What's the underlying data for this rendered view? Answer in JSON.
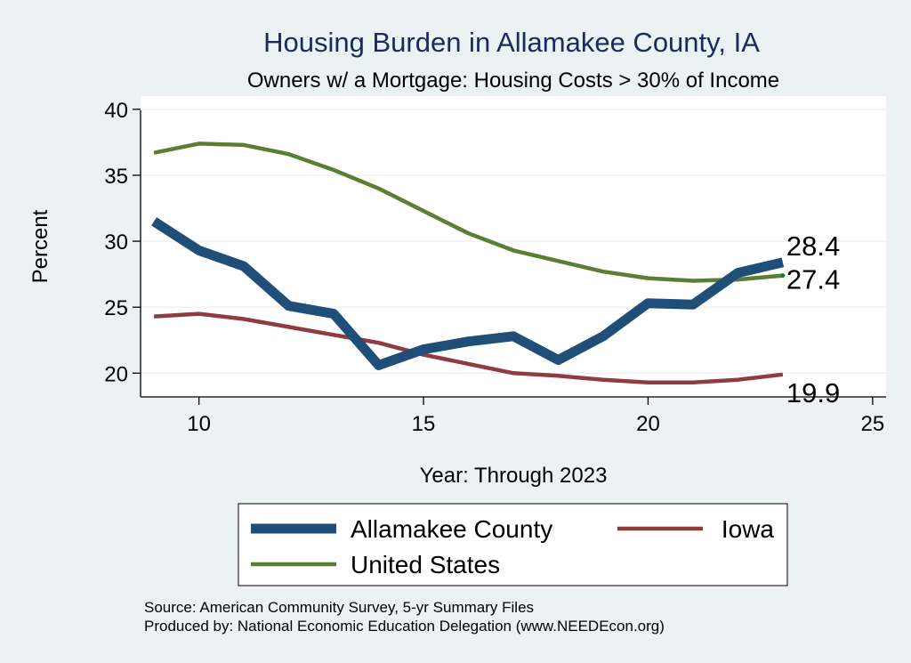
{
  "chart_data": {
    "type": "line",
    "title": "Housing Burden in Allamakee County, IA",
    "subtitle": "Owners w/ a Mortgage: Housing Costs > 30% of Income",
    "xlabel": "Year: Through 2023",
    "ylabel": "Percent",
    "xlim": [
      8.7,
      25.3
    ],
    "ylim": [
      18.2,
      41
    ],
    "x_ticks": [
      10,
      15,
      20,
      25
    ],
    "y_ticks": [
      20,
      25,
      30,
      35,
      40
    ],
    "grid": "horizontal",
    "legend_position": "bottom",
    "x": [
      9,
      10,
      11,
      12,
      13,
      14,
      15,
      16,
      17,
      18,
      19,
      20,
      21,
      22,
      23
    ],
    "series": [
      {
        "name": "Allamakee County",
        "color": "#1f4e79",
        "values": [
          31.5,
          29.3,
          28.1,
          25.1,
          24.5,
          20.6,
          21.8,
          22.4,
          22.8,
          21.0,
          22.8,
          25.3,
          25.2,
          27.6,
          28.4
        ],
        "end_label": "28.4"
      },
      {
        "name": "Iowa",
        "color": "#903b3e",
        "values": [
          24.3,
          24.5,
          24.1,
          23.5,
          22.9,
          22.3,
          21.4,
          20.7,
          20.0,
          19.8,
          19.5,
          19.3,
          19.3,
          19.5,
          19.9
        ],
        "end_label": "19.9"
      },
      {
        "name": "United States",
        "color": "#5a7f32",
        "values": [
          36.7,
          37.4,
          37.3,
          36.6,
          35.4,
          34.0,
          32.3,
          30.6,
          29.3,
          28.5,
          27.7,
          27.2,
          27.0,
          27.1,
          27.4
        ],
        "end_label": "27.4"
      }
    ]
  },
  "notes": {
    "source": "Source: American Community Survey, 5-yr Summary Files",
    "produced": "Produced by: National Economic Education Delegation (www.NEEDEcon.org)"
  }
}
